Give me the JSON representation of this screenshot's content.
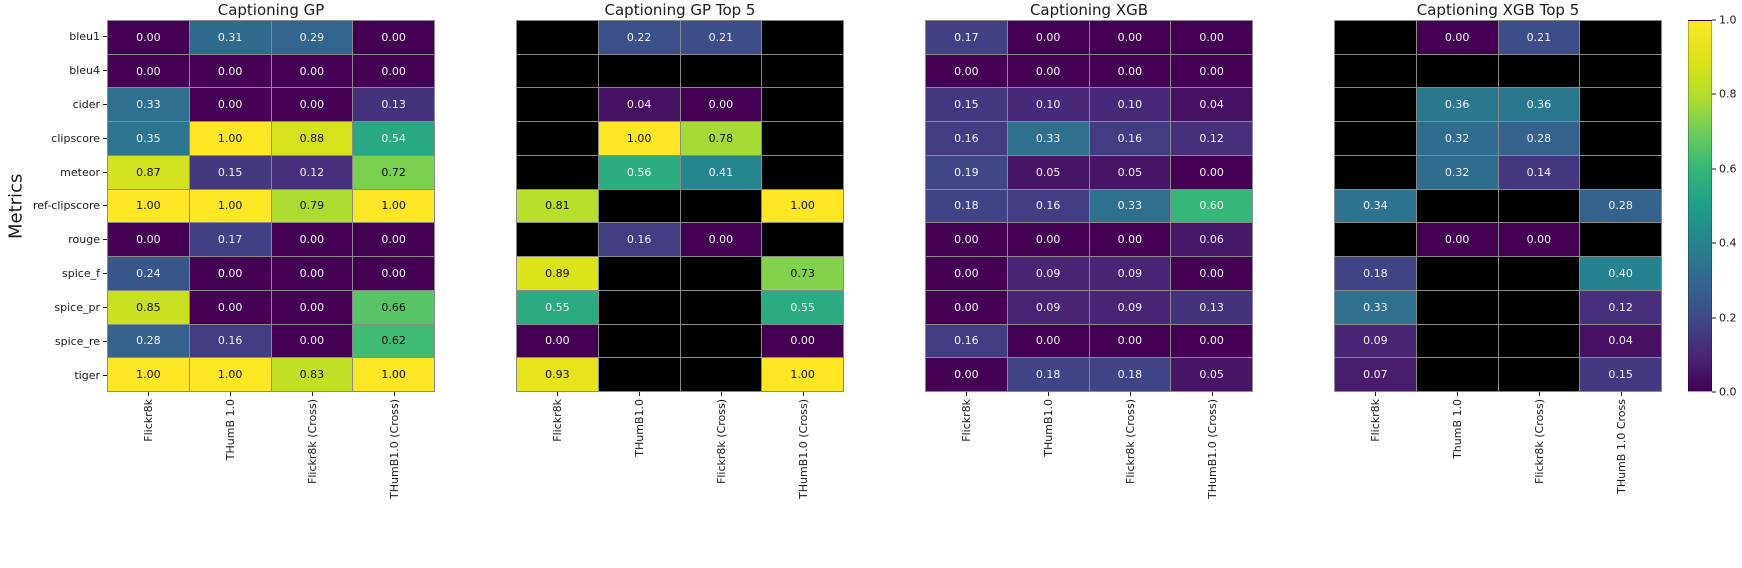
{
  "chart_data": {
    "type": "heatmap",
    "ylabel": "Metrics",
    "colormap": "viridis",
    "vmin": 0.0,
    "vmax": 1.0,
    "masked_color": "#000000",
    "value_range_note": "cells annotated with two-decimal values; black cells are masked (no value)",
    "colorbar_ticks": [
      "1.0",
      "0.8",
      "0.6",
      "0.4",
      "0.2",
      "0.0"
    ],
    "rows": [
      "bleu1",
      "bleu4",
      "cider",
      "clipscore",
      "meteor",
      "ref-clipscore",
      "rouge",
      "spice_f",
      "spice_pr",
      "spice_re",
      "tiger"
    ],
    "charts": [
      {
        "title": "Captioning GP",
        "columns": [
          "Flickr8k",
          "THumB 1.0",
          "Flickr8k (Cross)",
          "THumB1.0 (Cross)"
        ],
        "values": [
          [
            0.0,
            0.31,
            0.29,
            0.0
          ],
          [
            0.0,
            0.0,
            0.0,
            0.0
          ],
          [
            0.33,
            0.0,
            0.0,
            0.13
          ],
          [
            0.35,
            1.0,
            0.88,
            0.54
          ],
          [
            0.87,
            0.15,
            0.12,
            0.72
          ],
          [
            1.0,
            1.0,
            0.79,
            1.0
          ],
          [
            0.0,
            0.17,
            0.0,
            0.0
          ],
          [
            0.24,
            0.0,
            0.0,
            0.0
          ],
          [
            0.85,
            0.0,
            0.0,
            0.66
          ],
          [
            0.28,
            0.16,
            0.0,
            0.62
          ],
          [
            1.0,
            1.0,
            0.83,
            1.0
          ]
        ]
      },
      {
        "title": "Captioning GP Top 5",
        "columns": [
          "Flickr8k",
          "THumB1.0",
          "Flickr8k (Cross)",
          "THumB1.0 (Cross)"
        ],
        "values": [
          [
            null,
            0.22,
            0.21,
            null
          ],
          [
            null,
            null,
            null,
            null
          ],
          [
            null,
            0.04,
            0.0,
            null
          ],
          [
            null,
            1.0,
            0.78,
            null
          ],
          [
            null,
            0.56,
            0.41,
            null
          ],
          [
            0.81,
            null,
            null,
            1.0
          ],
          [
            null,
            0.16,
            0.0,
            null
          ],
          [
            0.89,
            null,
            null,
            0.73
          ],
          [
            0.55,
            null,
            null,
            0.55
          ],
          [
            0.0,
            null,
            null,
            0.0
          ],
          [
            0.93,
            null,
            null,
            1.0
          ]
        ]
      },
      {
        "title": "Captioning XGB",
        "columns": [
          "Flickr8k",
          "THumB1.0",
          "Flickr8k (Cross)",
          "THumB1.0 (Cross)"
        ],
        "values": [
          [
            0.17,
            0.0,
            0.0,
            0.0
          ],
          [
            0.0,
            0.0,
            0.0,
            0.0
          ],
          [
            0.15,
            0.1,
            0.1,
            0.04
          ],
          [
            0.16,
            0.33,
            0.16,
            0.12
          ],
          [
            0.19,
            0.05,
            0.05,
            0.0
          ],
          [
            0.18,
            0.16,
            0.33,
            0.6
          ],
          [
            0.0,
            0.0,
            0.0,
            0.06
          ],
          [
            0.0,
            0.09,
            0.09,
            0.0
          ],
          [
            0.0,
            0.09,
            0.09,
            0.13
          ],
          [
            0.16,
            0.0,
            0.0,
            0.0
          ],
          [
            0.0,
            0.18,
            0.18,
            0.05
          ]
        ]
      },
      {
        "title": "Captioning XGB Top 5",
        "columns": [
          "Flickr8k",
          "ThumB 1.0",
          "Flickr8k (Cross)",
          "THumB 1.0 Cross"
        ],
        "values": [
          [
            null,
            0.0,
            0.21,
            null
          ],
          [
            null,
            null,
            null,
            null
          ],
          [
            null,
            0.36,
            0.36,
            null
          ],
          [
            null,
            0.32,
            0.28,
            null
          ],
          [
            null,
            0.32,
            0.14,
            null
          ],
          [
            0.34,
            null,
            null,
            0.28
          ],
          [
            null,
            0.0,
            0.0,
            null
          ],
          [
            0.18,
            null,
            null,
            0.4
          ],
          [
            0.33,
            null,
            null,
            0.12
          ],
          [
            0.09,
            null,
            null,
            0.04
          ],
          [
            0.07,
            null,
            null,
            0.15
          ]
        ]
      }
    ]
  }
}
